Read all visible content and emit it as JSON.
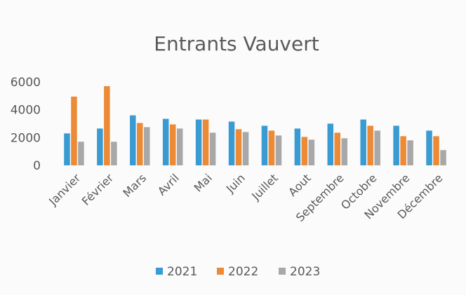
{
  "chart_data": {
    "type": "bar",
    "title": "Entrants Vauvert",
    "xlabel": "",
    "ylabel": "",
    "ylim": [
      0,
      6000
    ],
    "yticks": [
      "0",
      "2000",
      "4000",
      "6000"
    ],
    "ytick_values": [
      0,
      2000,
      4000,
      6000
    ],
    "grid": false,
    "legend": "bottom",
    "categories": [
      "Janvier",
      "Février",
      "Mars",
      "Avril",
      "Mai",
      "Juin",
      "Juillet",
      "Aout",
      "Septembre",
      "Octobre",
      "Novembre",
      "Décembre"
    ],
    "series": [
      {
        "name": "2021",
        "color": "#3a9bd2",
        "values": [
          2300,
          2650,
          3600,
          3350,
          3300,
          3150,
          2850,
          2650,
          3000,
          3300,
          2850,
          2500
        ]
      },
      {
        "name": "2022",
        "color": "#ec8a36",
        "values": [
          4950,
          5700,
          3050,
          2950,
          3300,
          2600,
          2500,
          2050,
          2350,
          2850,
          2100,
          2100
        ]
      },
      {
        "name": "2023",
        "color": "#a8a8a8",
        "values": [
          1700,
          1700,
          2750,
          2650,
          2350,
          2400,
          2150,
          1850,
          1950,
          2500,
          1800,
          1100
        ]
      }
    ]
  }
}
